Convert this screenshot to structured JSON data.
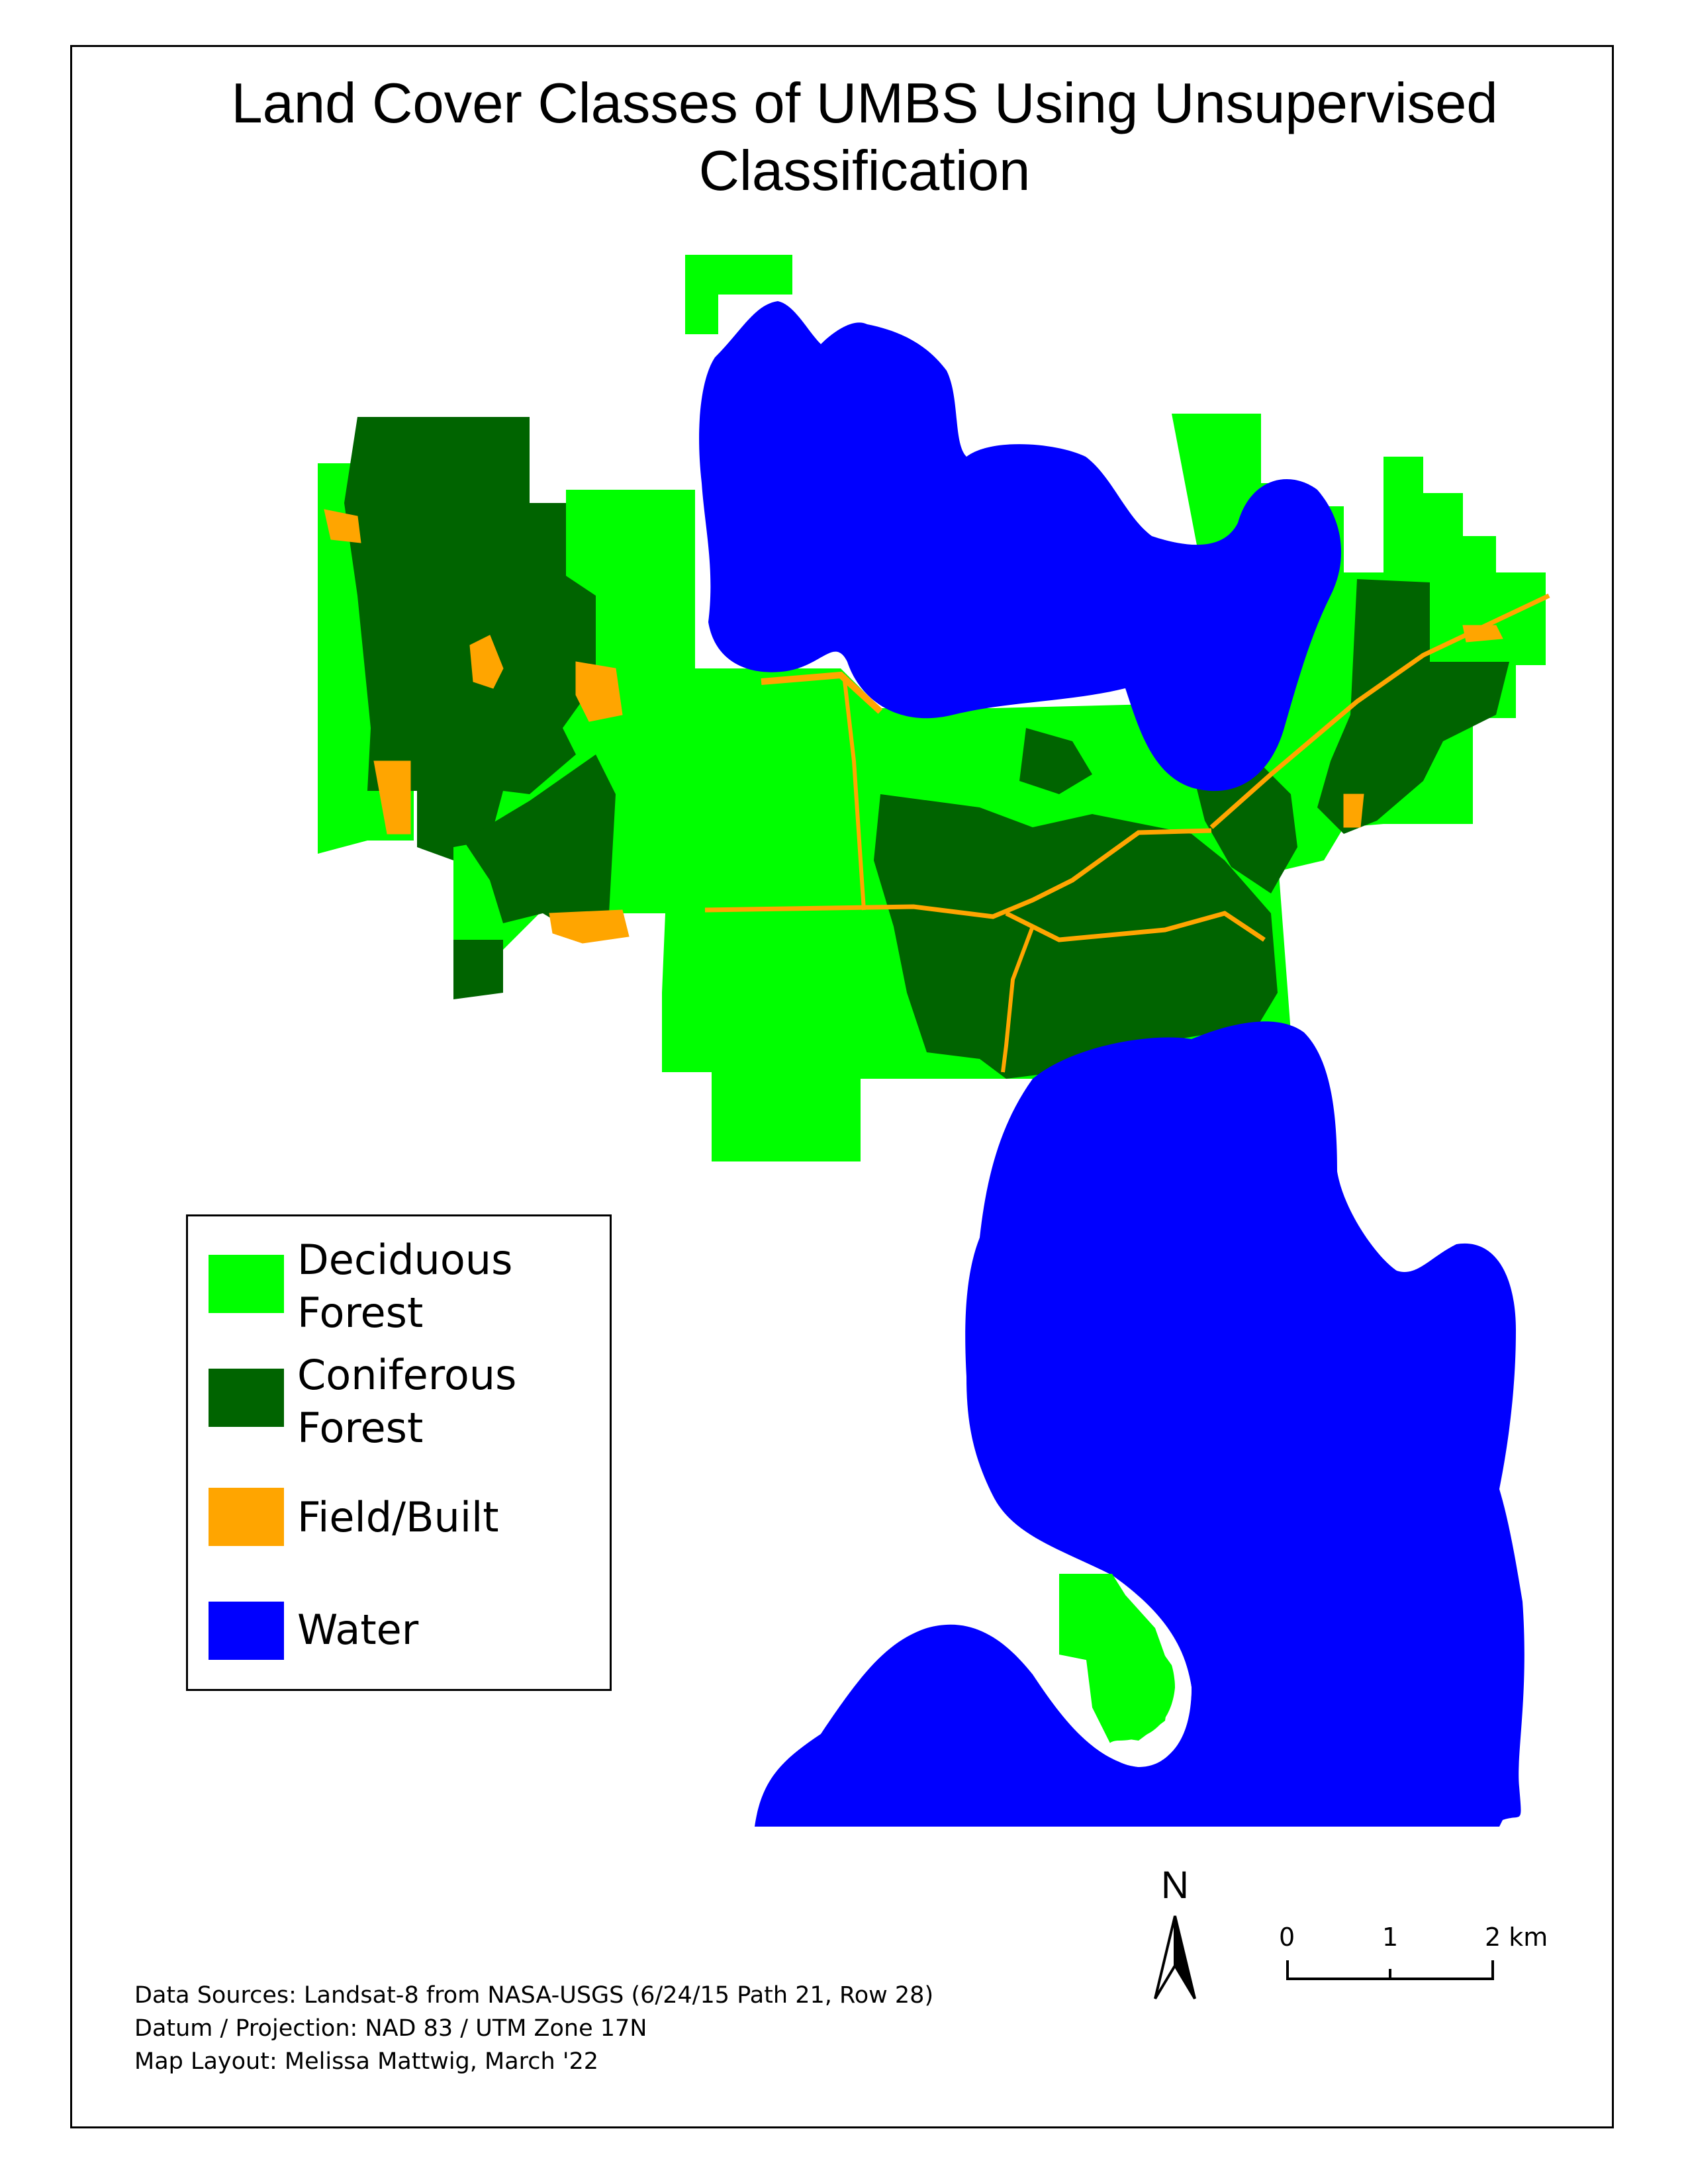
{
  "title": {
    "line1": "Land Cover Classes of UMBS Using Unsupervised",
    "line2": "Classification"
  },
  "colors": {
    "deciduous": "#00ff00",
    "coniferous": "#006400",
    "field_built": "#ffa500",
    "water": "#0000ff"
  },
  "legend": {
    "items": [
      {
        "label_line1": "Deciduous",
        "label_line2": "Forest",
        "color": "#00ff00"
      },
      {
        "label_line1": "Coniferous",
        "label_line2": "Forest",
        "color": "#006400"
      },
      {
        "label_line1": "Field/Built",
        "label_line2": "",
        "color": "#ffa500"
      },
      {
        "label_line1": "Water",
        "label_line2": "",
        "color": "#0000ff"
      }
    ]
  },
  "north_arrow": {
    "letter": "N"
  },
  "scale_bar": {
    "tick0": "0",
    "tick1": "1",
    "tick2": "2 km"
  },
  "credits": {
    "line1": "Data Sources: Landsat-8 from NASA-USGS (6/24/15 Path 21, Row 28)",
    "line2": "Datum / Projection: NAD 83 / UTM Zone 17N",
    "line3": "Map Layout: Melissa Mattwig, March '22"
  }
}
